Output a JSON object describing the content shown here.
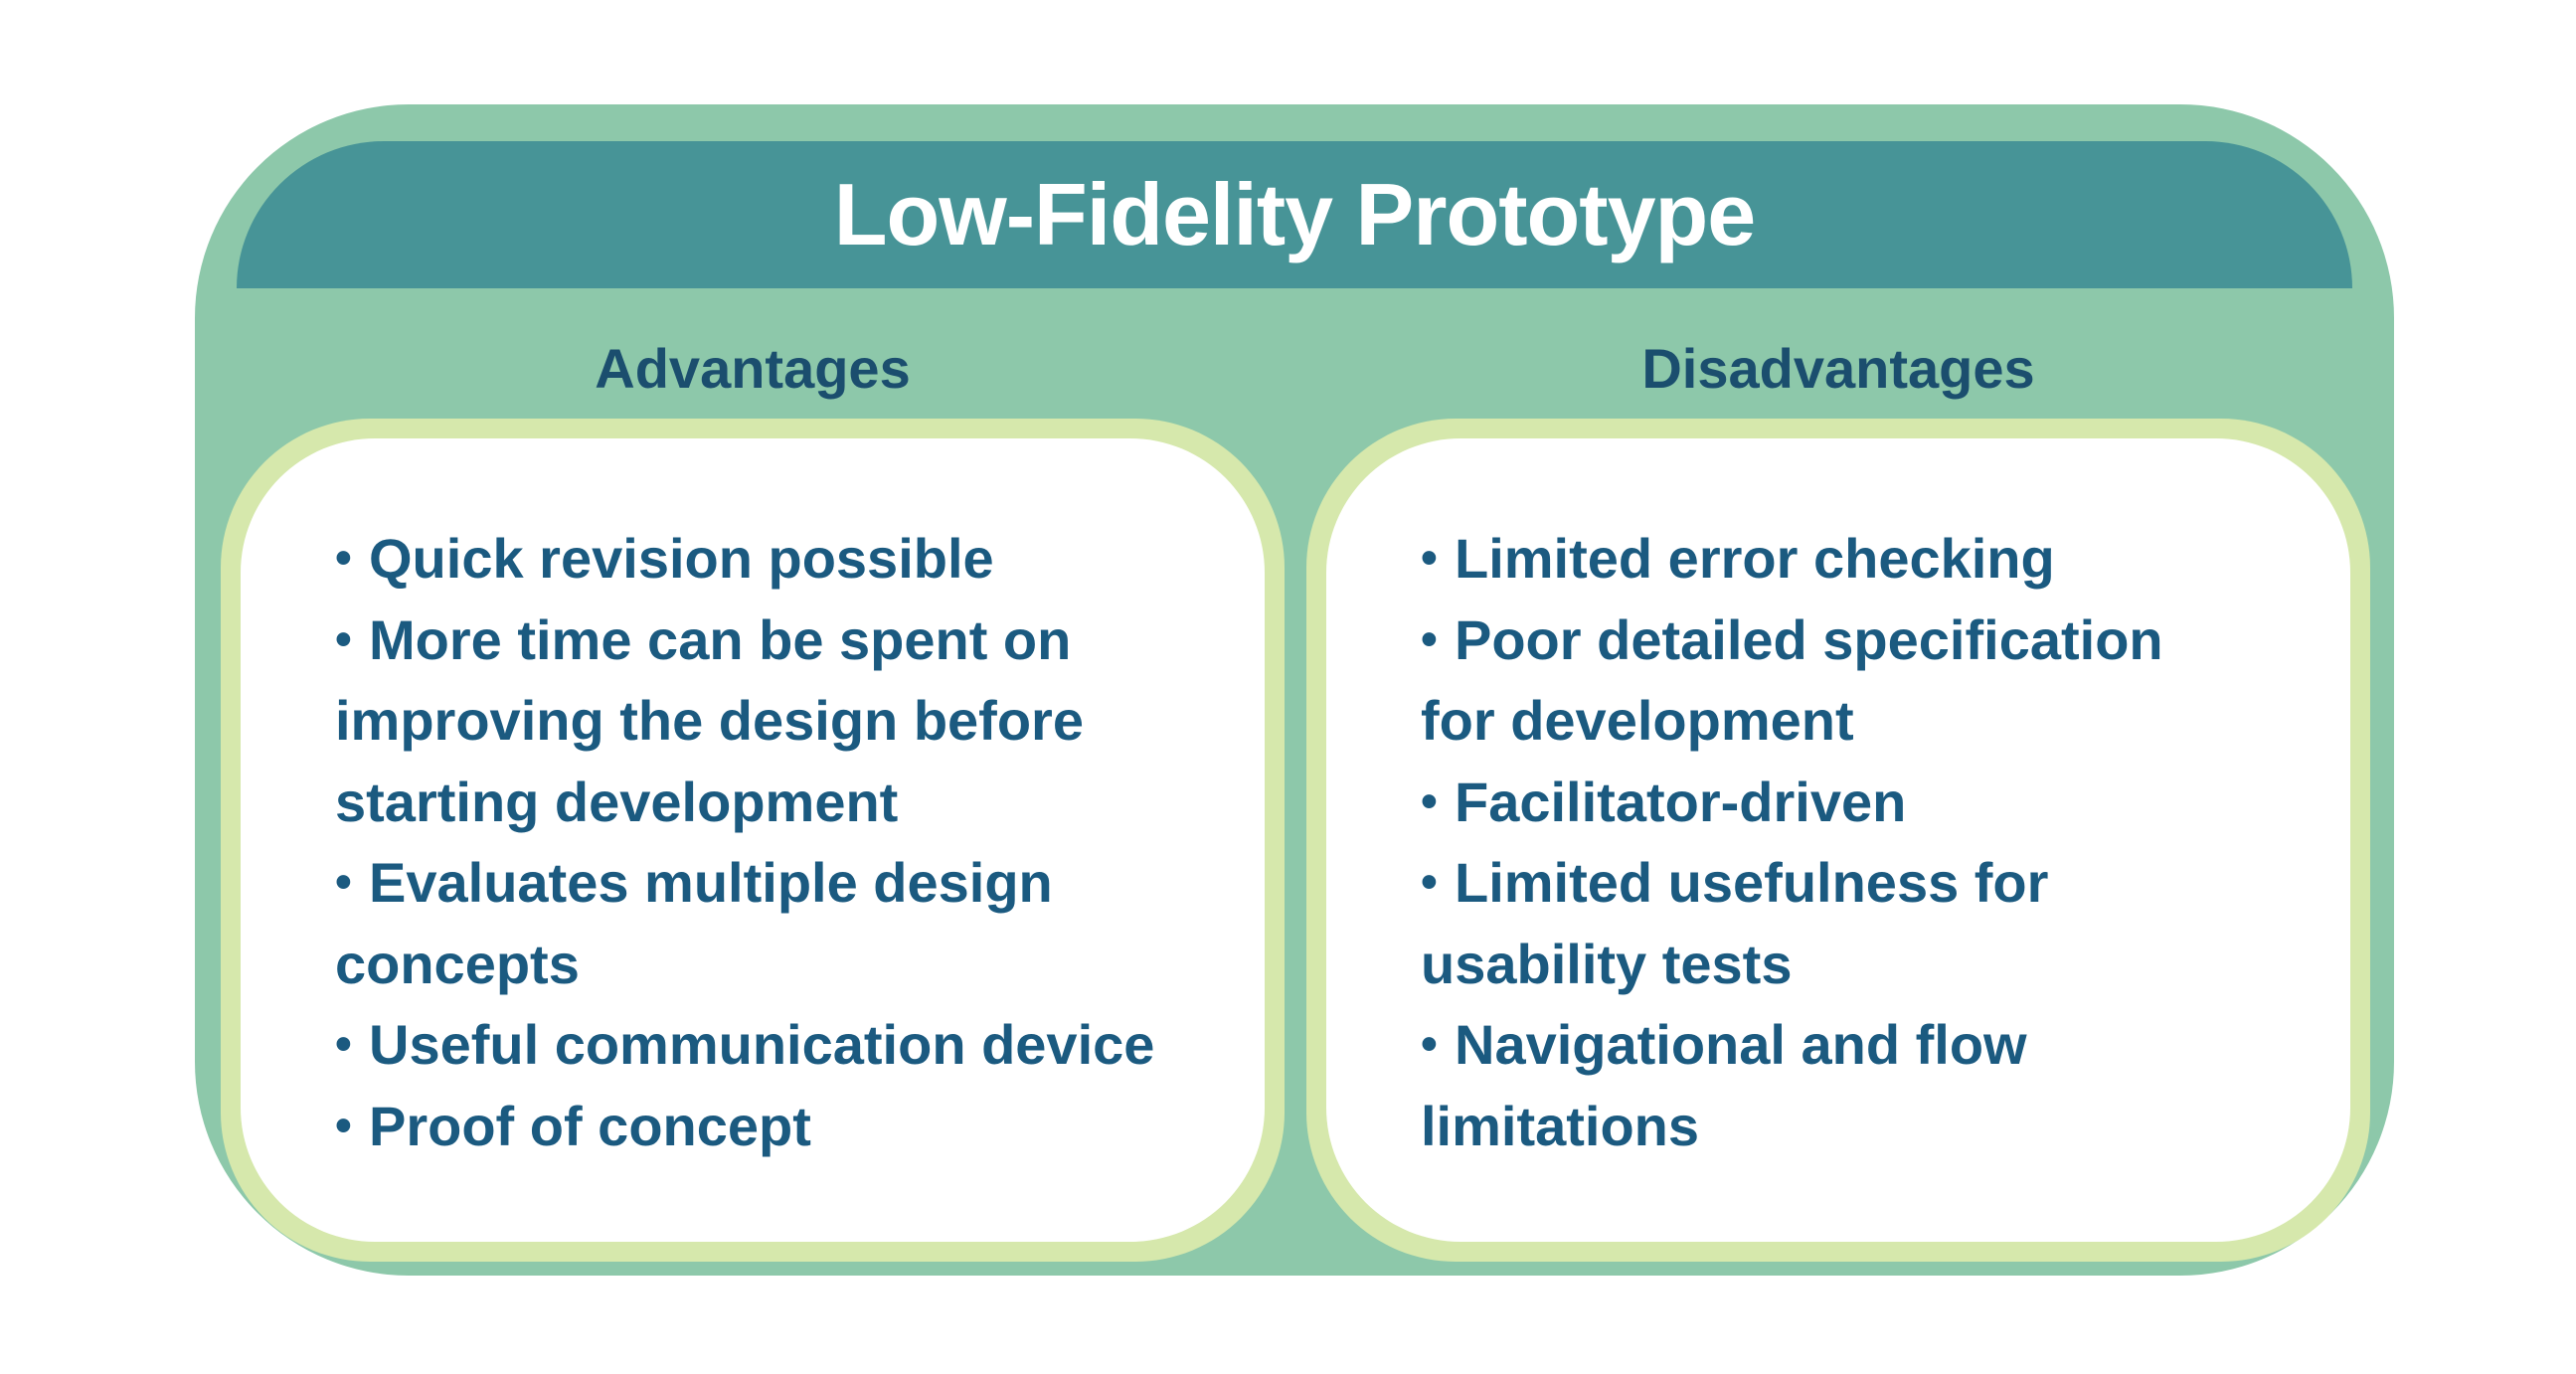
{
  "title": "Low-Fidelity Prototype",
  "advantages": {
    "heading": "Advantages",
    "items": [
      {
        "lines": [
          "Quick revision possible"
        ]
      },
      {
        "lines": [
          "More time can be spent on",
          "improving the design before",
          "starting development"
        ]
      },
      {
        "lines": [
          "Evaluates multiple design",
          "concepts"
        ]
      },
      {
        "lines": [
          "Useful communication device"
        ]
      },
      {
        "lines": [
          "Proof of concept"
        ]
      }
    ]
  },
  "disadvantages": {
    "heading": "Disadvantages",
    "items": [
      {
        "lines": [
          "Limited error checking"
        ]
      },
      {
        "lines": [
          "Poor detailed specification",
          "for development"
        ]
      },
      {
        "lines": [
          "Facilitator-driven"
        ]
      },
      {
        "lines": [
          "Limited usefulness for",
          "usability tests"
        ]
      },
      {
        "lines": [
          "Navigational and flow",
          "limitations"
        ]
      }
    ]
  },
  "bullet_glyph": "•",
  "colors": {
    "outer": "#8dc8aa",
    "title_bar": "#479497",
    "panel_border": "#d6e8ac",
    "text": "#1b5a80",
    "heading": "#1b4e6e"
  }
}
